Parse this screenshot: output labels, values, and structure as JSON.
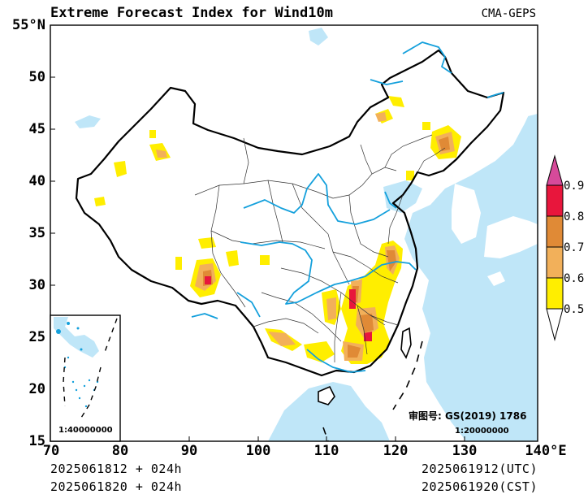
{
  "title": "Extreme Forecast Index for Wind10m",
  "source": "CMA-GEPS",
  "y_axis": {
    "ticks": [
      "55°N",
      "50",
      "45",
      "40",
      "35",
      "30",
      "25",
      "20",
      "15"
    ]
  },
  "x_axis": {
    "ticks": [
      "70",
      "80",
      "90",
      "100",
      "110",
      "120",
      "130",
      "140°E"
    ]
  },
  "footer": {
    "left_line1": "2025061812 + 024h",
    "left_line2": "2025061820 + 024h",
    "right_line1": "2025061912(UTC)",
    "right_line2": "2025061920(CST)"
  },
  "map_notes": {
    "approval_no": "审图号: GS(2019) 1786",
    "main_scale": "1:20000000",
    "inset_scale": "1:40000000"
  },
  "colorbar": {
    "labels": [
      "0.9",
      "0.8",
      "0.7",
      "0.6",
      "0.5"
    ],
    "colors": [
      "#d64a9a",
      "#e8163c",
      "#e08a36",
      "#f2b05a",
      "#ffee00",
      "#ffffff"
    ]
  },
  "colors": {
    "ocean": "#bfe6f8",
    "river": "#14a0dc",
    "level_05": "#ffee00",
    "level_06": "#f2b05a",
    "level_07": "#e08a36",
    "level_08": "#e8163c",
    "level_09": "#d64a9a"
  }
}
